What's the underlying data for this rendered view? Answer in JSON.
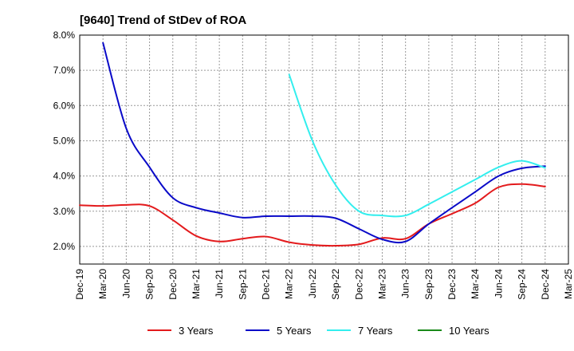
{
  "chart_data": {
    "type": "line",
    "title": "[9640]  Trend of StDev of ROA",
    "xlabel": "",
    "ylabel": "",
    "x": [
      "Dec-19",
      "Mar-20",
      "Jun-20",
      "Sep-20",
      "Dec-20",
      "Mar-21",
      "Jun-21",
      "Sep-21",
      "Dec-21",
      "Mar-22",
      "Jun-22",
      "Sep-22",
      "Dec-22",
      "Mar-23",
      "Jun-23",
      "Sep-23",
      "Dec-23",
      "Mar-24",
      "Jun-24",
      "Sep-24",
      "Dec-24",
      "Mar-25"
    ],
    "ylim": [
      1.5,
      8.0
    ],
    "yticks": [
      2.0,
      3.0,
      4.0,
      5.0,
      6.0,
      7.0,
      8.0
    ],
    "ytick_labels": [
      "2.0%",
      "3.0%",
      "4.0%",
      "5.0%",
      "6.0%",
      "7.0%",
      "8.0%"
    ],
    "grid": true,
    "legend_position": "bottom",
    "series": [
      {
        "name": "3 Years",
        "color": "#e31a1c",
        "values": [
          3.17,
          3.15,
          3.18,
          3.15,
          2.75,
          2.3,
          2.14,
          2.22,
          2.28,
          2.12,
          2.04,
          2.02,
          2.06,
          2.24,
          2.22,
          2.64,
          2.93,
          3.23,
          3.68,
          3.77,
          3.7,
          null
        ]
      },
      {
        "name": "5 Years",
        "color": "#0a0ac8",
        "values": [
          null,
          7.78,
          5.35,
          4.25,
          3.38,
          3.1,
          2.95,
          2.82,
          2.86,
          2.86,
          2.86,
          2.8,
          2.5,
          2.2,
          2.14,
          2.64,
          3.1,
          3.55,
          4.0,
          4.22,
          4.28,
          null
        ]
      },
      {
        "name": "7 Years",
        "color": "#33eeee",
        "values": [
          null,
          null,
          null,
          null,
          null,
          null,
          null,
          null,
          null,
          6.88,
          5.0,
          3.74,
          3.0,
          2.88,
          2.88,
          3.2,
          3.55,
          3.9,
          4.25,
          4.43,
          4.23,
          null
        ]
      },
      {
        "name": "10 Years",
        "color": "#1a8a1a",
        "values": [
          null,
          null,
          null,
          null,
          null,
          null,
          null,
          null,
          null,
          null,
          null,
          null,
          null,
          null,
          null,
          null,
          null,
          null,
          null,
          null,
          null,
          null
        ]
      }
    ]
  }
}
